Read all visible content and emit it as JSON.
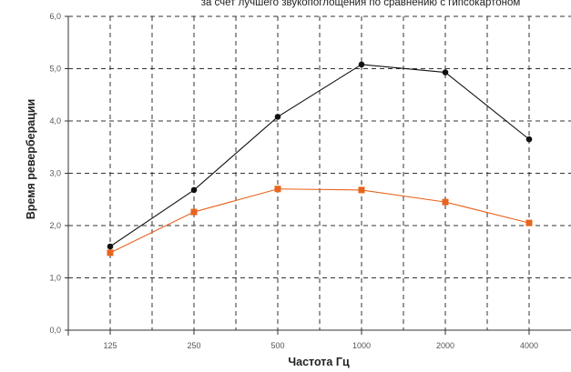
{
  "chart_data": {
    "type": "line",
    "title": "за счет лучшего звукопоглощения по сравнению с гипсокартоном",
    "xlabel": "Частота Гц",
    "ylabel": "Время реверберации",
    "categories": [
      "125",
      "250",
      "500",
      "1000",
      "2000",
      "4000"
    ],
    "y_ticks": [
      "0,0",
      "1,0",
      "2,0",
      "3,0",
      "4,0",
      "5,0",
      "6,0"
    ],
    "ylim": [
      0,
      6
    ],
    "grid": true,
    "legend": "none",
    "series": [
      {
        "color": "#111111",
        "marker": "circle",
        "values": [
          1.6,
          2.68,
          4.08,
          5.08,
          4.93,
          3.65
        ]
      },
      {
        "color": "#e8641e",
        "marker": "square",
        "values": [
          1.48,
          2.26,
          2.7,
          2.68,
          2.45,
          2.05
        ]
      }
    ]
  }
}
